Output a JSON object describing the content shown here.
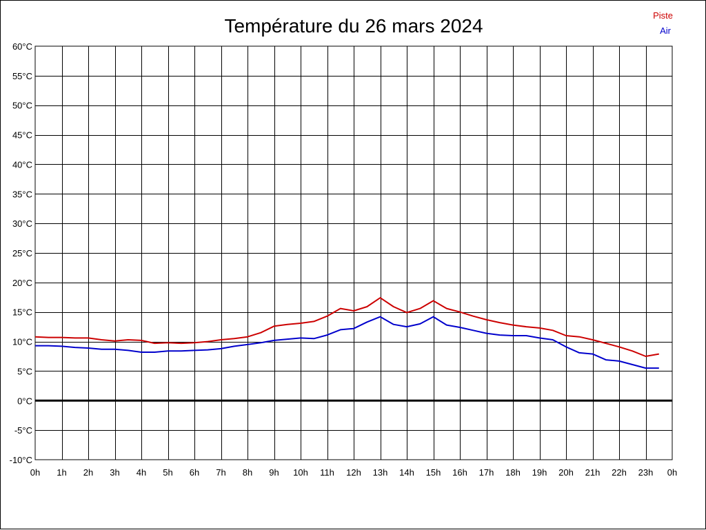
{
  "chart_data": {
    "type": "line",
    "title": "Température du 26 mars 2024",
    "x_tick_labels": [
      "0h",
      "1h",
      "2h",
      "3h",
      "4h",
      "5h",
      "6h",
      "7h",
      "8h",
      "9h",
      "10h",
      "11h",
      "12h",
      "13h",
      "14h",
      "15h",
      "16h",
      "17h",
      "18h",
      "19h",
      "20h",
      "21h",
      "22h",
      "23h",
      "0h"
    ],
    "y_tick_labels": [
      "60°C",
      "55°C",
      "50°C",
      "45°C",
      "40°C",
      "35°C",
      "30°C",
      "25°C",
      "20°C",
      "15°C",
      "10°C",
      "5°C",
      "0°C",
      "-5°C",
      "-10°C"
    ],
    "xlim": [
      0,
      24
    ],
    "ylim": [
      -10,
      60
    ],
    "grid": true,
    "legend_position": "top-right",
    "x": [
      0,
      0.5,
      1,
      1.5,
      2,
      2.5,
      3,
      3.5,
      4,
      4.5,
      5,
      5.5,
      6,
      6.5,
      7,
      7.5,
      8,
      8.5,
      9,
      9.5,
      10,
      10.5,
      11,
      11.5,
      12,
      12.5,
      13,
      13.5,
      14,
      14.5,
      15,
      15.5,
      16,
      16.5,
      17,
      17.5,
      18,
      18.5,
      19,
      19.5,
      20,
      20.5,
      21,
      21.5,
      22,
      22.5,
      23,
      23.5
    ],
    "series": [
      {
        "name": "Piste",
        "color": "#cc0000",
        "values": [
          10.8,
          10.7,
          10.7,
          10.6,
          10.6,
          10.3,
          10.1,
          10.3,
          10.2,
          9.7,
          9.8,
          9.7,
          9.8,
          10.0,
          10.3,
          10.5,
          10.8,
          11.5,
          12.6,
          12.9,
          13.1,
          13.4,
          14.3,
          15.6,
          15.2,
          15.9,
          17.4,
          15.9,
          14.9,
          15.6,
          16.9,
          15.6,
          15.0,
          14.3,
          13.7,
          13.2,
          12.8,
          12.5,
          12.3,
          11.9,
          11.0,
          10.8,
          10.3,
          9.7,
          9.1,
          8.4,
          7.5,
          7.9
        ]
      },
      {
        "name": "Air",
        "color": "#0000cc",
        "values": [
          9.3,
          9.3,
          9.2,
          9.0,
          8.9,
          8.7,
          8.7,
          8.5,
          8.2,
          8.2,
          8.4,
          8.4,
          8.5,
          8.6,
          8.8,
          9.2,
          9.5,
          9.8,
          10.2,
          10.4,
          10.6,
          10.5,
          11.1,
          12.0,
          12.2,
          13.3,
          14.2,
          12.9,
          12.5,
          13.0,
          14.2,
          12.8,
          12.4,
          11.9,
          11.4,
          11.1,
          11.0,
          11.0,
          10.6,
          10.3,
          9.1,
          8.1,
          7.9,
          6.9,
          6.7,
          6.1,
          5.5,
          5.5
        ]
      }
    ],
    "baseline_value": 0
  }
}
